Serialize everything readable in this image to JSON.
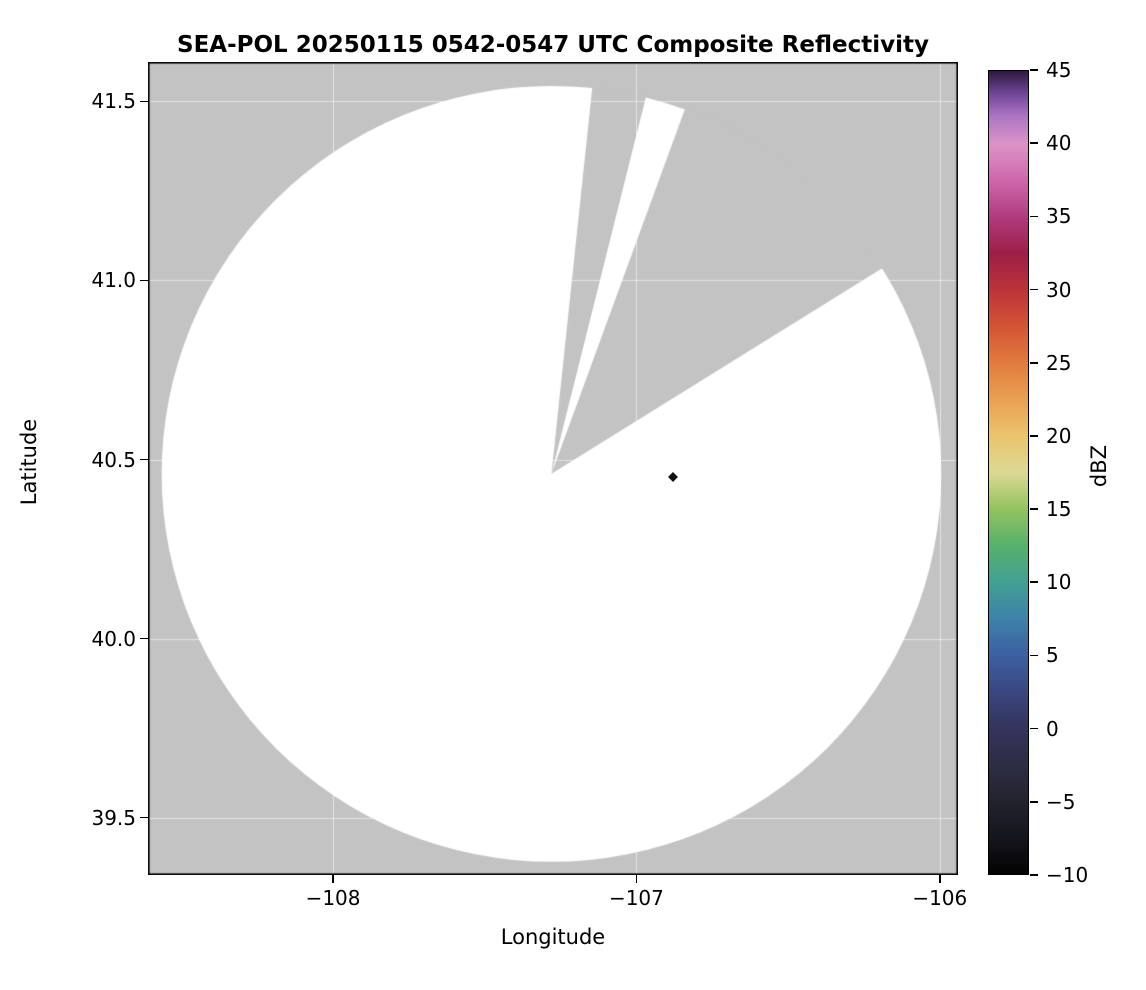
{
  "chart_data": {
    "type": "radar_coverage_map",
    "title": "SEA-POL 20250115 0542-0547 UTC Composite Reflectivity",
    "xlabel": "Longitude",
    "ylabel": "Latitude",
    "xlim": [
      -108.61,
      -105.94
    ],
    "ylim": [
      39.34,
      41.61
    ],
    "grid": true,
    "x_ticks": [
      {
        "value": -108,
        "label": "−108"
      },
      {
        "value": -107,
        "label": "−107"
      },
      {
        "value": -106,
        "label": "−106"
      }
    ],
    "y_ticks": [
      {
        "value": 39.5,
        "label": "39.5"
      },
      {
        "value": 40.0,
        "label": "40.0"
      },
      {
        "value": 40.5,
        "label": "40.5"
      },
      {
        "value": 41.0,
        "label": "41.0"
      },
      {
        "value": 41.5,
        "label": "41.5"
      }
    ],
    "radar": {
      "center_lon": -107.28,
      "center_lat": 40.46,
      "radius_deg_lon": 1.285,
      "radius_deg_lat": 1.083,
      "coverage_color": "#ffffff",
      "masked_color": "#c3c3c3",
      "missing_sector_azimuths_deg": [
        [
          6,
          14
        ],
        [
          20,
          58
        ]
      ]
    },
    "marker": {
      "lon": -106.88,
      "lat": 40.45,
      "shape": "diamond",
      "color": "#111111"
    },
    "colorbar": {
      "label": "dBZ",
      "min": -10,
      "max": 45,
      "ticks": [
        {
          "value": 45,
          "label": "45"
        },
        {
          "value": 40,
          "label": "40"
        },
        {
          "value": 35,
          "label": "35"
        },
        {
          "value": 30,
          "label": "30"
        },
        {
          "value": 25,
          "label": "25"
        },
        {
          "value": 20,
          "label": "20"
        },
        {
          "value": 15,
          "label": "15"
        },
        {
          "value": 10,
          "label": "10"
        },
        {
          "value": 5,
          "label": "5"
        },
        {
          "value": 0,
          "label": "0"
        },
        {
          "value": -5,
          "label": "−5"
        },
        {
          "value": -10,
          "label": "−10"
        }
      ],
      "gradient_stops": [
        {
          "value": -10,
          "color": "#030303"
        },
        {
          "value": -7.5,
          "color": "#15151c"
        },
        {
          "value": -5,
          "color": "#23232f"
        },
        {
          "value": -2.5,
          "color": "#2d2d45"
        },
        {
          "value": 0,
          "color": "#34345c"
        },
        {
          "value": 2.5,
          "color": "#3a4780"
        },
        {
          "value": 5,
          "color": "#3c60a2"
        },
        {
          "value": 7.5,
          "color": "#3e82a9"
        },
        {
          "value": 10,
          "color": "#42a092"
        },
        {
          "value": 12.5,
          "color": "#57b16b"
        },
        {
          "value": 15,
          "color": "#93c35f"
        },
        {
          "value": 17.5,
          "color": "#dcd894"
        },
        {
          "value": 20,
          "color": "#ebc46d"
        },
        {
          "value": 22.5,
          "color": "#e9a052"
        },
        {
          "value": 25,
          "color": "#e17b3e"
        },
        {
          "value": 27.5,
          "color": "#d35434"
        },
        {
          "value": 30,
          "color": "#bc3338"
        },
        {
          "value": 32.5,
          "color": "#9d1e47"
        },
        {
          "value": 35,
          "color": "#b03b7e"
        },
        {
          "value": 37.5,
          "color": "#cf67ab"
        },
        {
          "value": 40,
          "color": "#dc94c8"
        },
        {
          "value": 42,
          "color": "#a873c2"
        },
        {
          "value": 43.5,
          "color": "#6e4494"
        },
        {
          "value": 45,
          "color": "#2d1a3f"
        }
      ]
    }
  }
}
